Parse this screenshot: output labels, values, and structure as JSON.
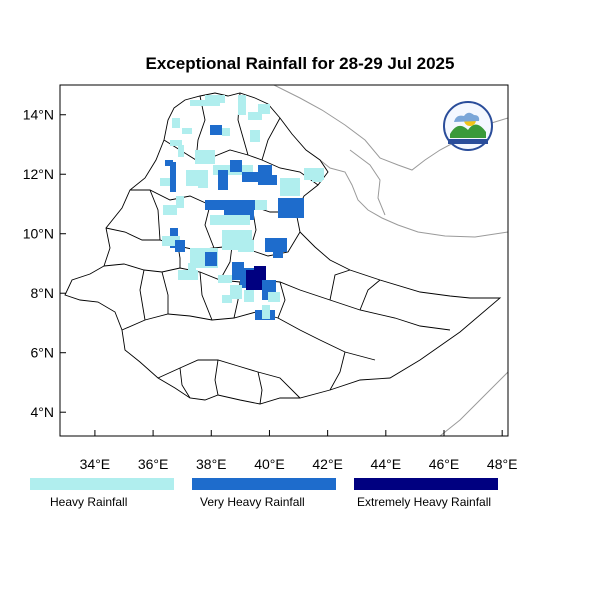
{
  "title": "Exceptional Rainfall for 28-29 Jul 2025",
  "axes": {
    "lon_ticks": [
      {
        "value": 34,
        "label": "34°E"
      },
      {
        "value": 36,
        "label": "36°E"
      },
      {
        "value": 38,
        "label": "38°E"
      },
      {
        "value": 40,
        "label": "40°E"
      },
      {
        "value": 42,
        "label": "42°E"
      },
      {
        "value": 44,
        "label": "44°E"
      },
      {
        "value": 46,
        "label": "46°E"
      },
      {
        "value": 48,
        "label": "48°E"
      }
    ],
    "lat_ticks": [
      {
        "value": 14,
        "label": "14°N"
      },
      {
        "value": 12,
        "label": "12°N"
      },
      {
        "value": 10,
        "label": "10°N"
      },
      {
        "value": 8,
        "label": "8°N"
      },
      {
        "value": 6,
        "label": "6°N"
      },
      {
        "value": 4,
        "label": "4°N"
      }
    ],
    "lon_range": [
      32.8,
      48.2
    ],
    "lat_range": [
      3.2,
      15.0
    ]
  },
  "legend": [
    {
      "label": "Heavy Rainfall",
      "color": "#b0eeee"
    },
    {
      "label": "Very Heavy Rainfall",
      "color": "#1e6ccc"
    },
    {
      "label": "Extremely Heavy Rainfall",
      "color": "#000080"
    }
  ],
  "logo": {
    "icon": "ethiopian-meteorology-institute-logo"
  },
  "colors": {
    "country_border": "#000000",
    "neighbor_border": "#999999"
  }
}
